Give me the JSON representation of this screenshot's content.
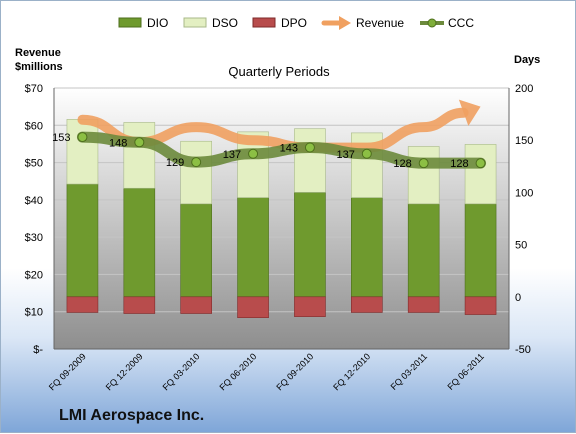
{
  "company": "LMI Aerospace Inc.",
  "chart_data": {
    "type": "bar",
    "title": "Quarterly Periods",
    "left_axis_title": "Revenue $millions",
    "right_axis_title": "Days",
    "categories": [
      "FQ 09-2009",
      "FQ 12-2009",
      "FQ 03-2010",
      "FQ 06-2010",
      "FQ 09-2010",
      "FQ 12-2010",
      "FQ 03-2011",
      "FQ 06-2011"
    ],
    "left_axis": {
      "min": 0,
      "max": 70,
      "step": 10,
      "tick_labels": [
        "$-",
        "$10",
        "$20",
        "$30",
        "$40",
        "$50",
        "$60",
        "$70"
      ]
    },
    "right_axis": {
      "min": -50,
      "max": 200,
      "step": 50,
      "tick_labels": [
        "-50",
        "0",
        "50",
        "100",
        "150",
        "200"
      ]
    },
    "series": [
      {
        "name": "DIO",
        "axis": "days",
        "kind": "stacked-bar",
        "color": "#6f9a2e",
        "values": [
          108,
          104,
          89,
          95,
          100,
          95,
          89,
          89
        ]
      },
      {
        "name": "DSO",
        "axis": "days",
        "kind": "stacked-bar",
        "color": "#e3efc2",
        "values": [
          62,
          63,
          60,
          63,
          61,
          62,
          55,
          57
        ]
      },
      {
        "name": "DPO",
        "axis": "days",
        "kind": "stacked-bar-negative",
        "color": "#b84c4c",
        "values": [
          -15,
          -16,
          -16,
          -20,
          -19,
          -15,
          -15,
          -17
        ]
      },
      {
        "name": "Revenue",
        "axis": "revenue",
        "kind": "line-arrow",
        "color": "#f0a060",
        "values": [
          61.5,
          55.5,
          59.5,
          56.0,
          54.0,
          54.0,
          59.5,
          65.0
        ]
      },
      {
        "name": "CCC",
        "axis": "days",
        "kind": "line",
        "color": "#6c8a3c",
        "values": [
          153,
          148,
          129,
          137,
          143,
          137,
          128,
          128
        ],
        "data_labels": [
          "153",
          "148",
          "129",
          "137",
          "143",
          "137",
          "128",
          "128"
        ]
      }
    ],
    "legend": [
      "DIO",
      "DSO",
      "DPO",
      "Revenue",
      "CCC"
    ],
    "legend_position": "top",
    "grid": true
  }
}
